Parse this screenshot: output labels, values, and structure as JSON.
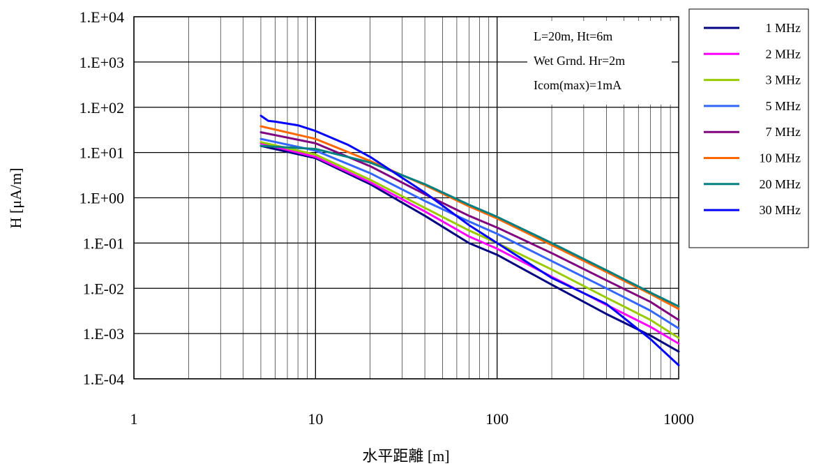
{
  "chart_data": {
    "type": "line",
    "title": "",
    "xlabel": "水平距離 [m]",
    "ylabel": "H [μA/m]",
    "x_scale": "log",
    "y_scale": "log",
    "xlim": [
      1,
      1000
    ],
    "ylim": [
      0.0001,
      10000
    ],
    "grid": true,
    "legend_position": "right",
    "x_ticks": [
      {
        "value": 1,
        "label": "1"
      },
      {
        "value": 10,
        "label": "10"
      },
      {
        "value": 100,
        "label": "100"
      },
      {
        "value": 1000,
        "label": "1000"
      }
    ],
    "y_ticks": [
      {
        "value": 10000,
        "label": "1.E+04"
      },
      {
        "value": 1000,
        "label": "1.E+03"
      },
      {
        "value": 100,
        "label": "1.E+02"
      },
      {
        "value": 10,
        "label": "1.E+01"
      },
      {
        "value": 1,
        "label": "1.E+00"
      },
      {
        "value": 0.1,
        "label": "1.E-01"
      },
      {
        "value": 0.01,
        "label": "1.E-02"
      },
      {
        "value": 0.001,
        "label": "1.E-03"
      },
      {
        "value": 0.0001,
        "label": "1.E-04"
      }
    ],
    "annotation_lines": [
      "L=20m, Ht=6m",
      "Wet Grnd. Hr=2m",
      "Icom(max)=1mA"
    ],
    "series": [
      {
        "name": "1 MHz",
        "color": "#000080",
        "x": [
          5,
          10,
          20,
          40,
          70,
          100,
          200,
          400,
          700,
          1000
        ],
        "y": [
          14,
          7.5,
          2.0,
          0.4,
          0.1,
          0.055,
          0.012,
          0.0027,
          0.0009,
          0.0004
        ]
      },
      {
        "name": "2 MHz",
        "color": "#FF00FF",
        "x": [
          5,
          10,
          20,
          40,
          70,
          100,
          200,
          400,
          700,
          1000
        ],
        "y": [
          16,
          8,
          2.2,
          0.5,
          0.14,
          0.075,
          0.018,
          0.0043,
          0.0014,
          0.0006
        ]
      },
      {
        "name": "3 MHz",
        "color": "#99CC00",
        "x": [
          5,
          10,
          20,
          40,
          70,
          100,
          200,
          400,
          700,
          1000
        ],
        "y": [
          17,
          9,
          2.5,
          0.6,
          0.19,
          0.1,
          0.026,
          0.0062,
          0.002,
          0.0008
        ]
      },
      {
        "name": "5 MHz",
        "color": "#3366FF",
        "x": [
          5,
          10,
          20,
          40,
          70,
          100,
          200,
          400,
          700,
          1000
        ],
        "y": [
          20,
          11,
          3.5,
          0.85,
          0.3,
          0.16,
          0.04,
          0.01,
          0.0032,
          0.0013
        ]
      },
      {
        "name": "7 MHz",
        "color": "#800080",
        "x": [
          5,
          10,
          20,
          40,
          70,
          100,
          200,
          400,
          700,
          1000
        ],
        "y": [
          28,
          16,
          5.0,
          1.2,
          0.4,
          0.22,
          0.06,
          0.015,
          0.005,
          0.002
        ]
      },
      {
        "name": "10 MHz",
        "color": "#FF6600",
        "x": [
          5,
          10,
          20,
          40,
          70,
          100,
          200,
          400,
          700,
          1000
        ],
        "y": [
          38,
          20,
          6.5,
          1.9,
          0.65,
          0.35,
          0.09,
          0.023,
          0.0075,
          0.0035
        ]
      },
      {
        "name": "20 MHz",
        "color": "#008080",
        "x": [
          5,
          10,
          20,
          40,
          70,
          100,
          200,
          400,
          700,
          1000
        ],
        "y": [
          14,
          12,
          6.0,
          2.0,
          0.7,
          0.38,
          0.1,
          0.025,
          0.008,
          0.004
        ]
      },
      {
        "name": "30 MHz",
        "color": "#0000FF",
        "x": [
          5,
          5.5,
          6,
          8,
          10,
          15,
          20,
          40,
          70,
          100,
          200,
          400,
          700,
          1000
        ],
        "y": [
          65,
          50,
          48,
          40,
          30,
          15,
          8,
          1.3,
          0.25,
          0.1,
          0.017,
          0.0045,
          0.00075,
          0.0002
        ]
      }
    ]
  }
}
